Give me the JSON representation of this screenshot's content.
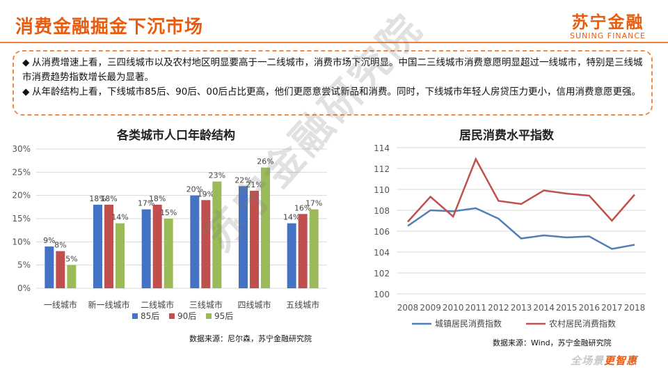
{
  "header": {
    "title": "消费金融掘金下沉市场",
    "logo_cn": "苏宁金融",
    "logo_en": "SUNING FINANCE"
  },
  "bullets": [
    "从消费增速上看，三四线城市以及农村地区明显要高于一二线城市，消费市场下沉明显。中国二三线城市消费意愿明显超过一线城市，特别是三线城市消费趋势指数增长最为显著。",
    "从年龄结构上看，下线城市85后、90后、00后占比更高，他们更愿意尝试新品和消费。同时，下线城市年轻人房贷压力更小，信用消费意愿更强。"
  ],
  "bullet_symbol": "◆",
  "chart_data": [
    {
      "type": "bar",
      "title": "各类城市人口年龄结构",
      "categories": [
        "一线城市",
        "新一线城市",
        "二线城市",
        "三线城市",
        "四线城市",
        "五线城市"
      ],
      "series": [
        {
          "name": "85后",
          "color": "#4472c4",
          "values": [
            9,
            18,
            17,
            20,
            22,
            14
          ]
        },
        {
          "name": "90后",
          "color": "#c0504d",
          "values": [
            8,
            18,
            18,
            19,
            21,
            16
          ]
        },
        {
          "name": "95后",
          "color": "#9bbb59",
          "values": [
            5,
            14,
            15,
            23,
            26,
            17
          ]
        }
      ],
      "data_labels": [
        [
          "9%",
          "18%",
          "17%",
          "20%",
          "22%",
          "14%"
        ],
        [
          "8%",
          "18%",
          "18%",
          "19%",
          "21%",
          "16%"
        ],
        [
          "5%",
          "14%",
          "15%",
          "23%",
          "26%",
          "17%"
        ]
      ],
      "ylim": [
        0,
        30
      ],
      "yticks": [
        0,
        5,
        10,
        15,
        20,
        25,
        30
      ],
      "ytick_labels": [
        "0%",
        "5%",
        "10%",
        "15%",
        "20%",
        "25%",
        "30%"
      ],
      "grid": true,
      "legend": "bottom",
      "source": "数据来源：尼尔森，苏宁金融研究院"
    },
    {
      "type": "line",
      "title": "居民消费水平指数",
      "x": [
        "2008",
        "2009",
        "2010",
        "2011",
        "2012",
        "2013",
        "2014",
        "2015",
        "2016",
        "2017",
        "2018"
      ],
      "series": [
        {
          "name": "城镇居民消费指数",
          "color": "#4f7fb4",
          "values": [
            106.5,
            108.0,
            107.9,
            108.2,
            107.2,
            105.3,
            105.6,
            105.4,
            105.5,
            104.3,
            104.7
          ]
        },
        {
          "name": "农村居民消费指数",
          "color": "#c0504d",
          "values": [
            106.9,
            109.3,
            107.4,
            112.9,
            108.9,
            108.6,
            109.9,
            109.6,
            109.4,
            107.0,
            109.5
          ]
        }
      ],
      "ylim": [
        100,
        114
      ],
      "yticks": [
        100,
        102,
        104,
        106,
        108,
        110,
        112,
        114
      ],
      "grid": true,
      "legend": "bottom",
      "source": "数据来源：Wind，苏宁金融研究院"
    }
  ],
  "watermark": "苏宁金融研究院",
  "footer": {
    "part1": "全场景",
    "part2": "更智惠"
  }
}
